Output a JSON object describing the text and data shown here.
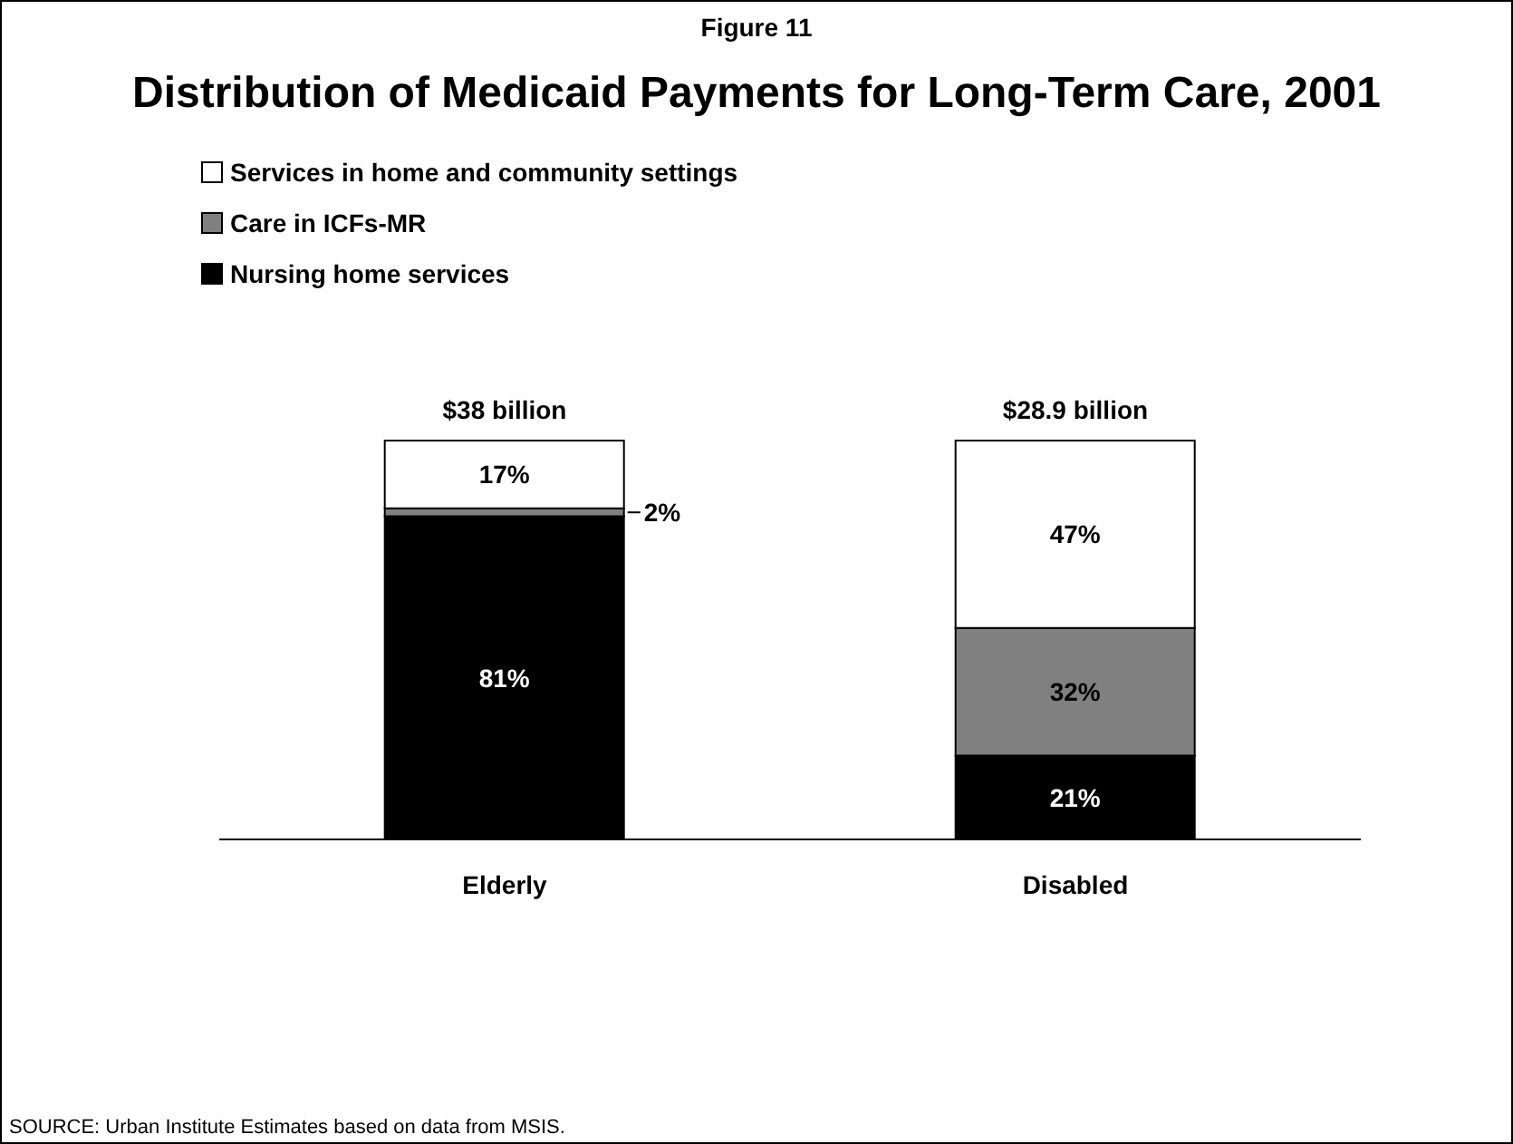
{
  "chart_data": {
    "type": "bar",
    "title": "Distribution of Medicaid Payments for Long-Term Care, 2001",
    "subtitle": "Figure 11",
    "annotations": [
      "SOURCE: Urban Institute Estimates based on data from MSIS.",
      {
        "text": "$38 billion",
        "x": "Elderly",
        "y": 100
      },
      {
        "text": "$28.9 billion",
        "x": "Disabled",
        "y": 100
      }
    ],
    "categories": [
      "Elderly",
      "Disabled"
    ],
    "stacked": true,
    "legend": "top left",
    "series": [
      {
        "name": "Nursing home services",
        "color": "#000000",
        "values": [
          81,
          21
        ],
        "value_labels": [
          "81%",
          "21%"
        ]
      },
      {
        "name": "Care in ICFs-MR",
        "color": "#808080",
        "values": [
          2,
          32
        ],
        "value_labels": [
          "2%",
          "32%"
        ]
      },
      {
        "name": "Services in home and community settings",
        "color": "#ffffff",
        "values": [
          17,
          47
        ],
        "value_labels": [
          "17%",
          "47%"
        ]
      }
    ]
  }
}
